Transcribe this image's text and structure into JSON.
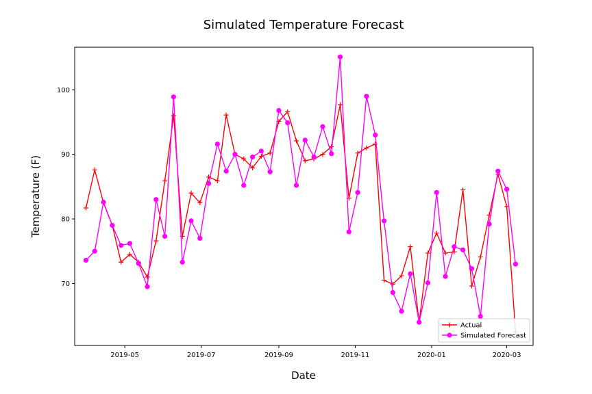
{
  "chart_data": {
    "type": "line",
    "title": "Simulated Temperature Forecast",
    "xlabel": "Date",
    "ylabel": "Temperature (F)",
    "x_ticks": [
      "2019-05",
      "2019-07",
      "2019-09",
      "2019-11",
      "2020-01",
      "2020-03"
    ],
    "y_ticks": [
      70,
      80,
      90,
      100
    ],
    "xlim": [
      "2019-03-22",
      "2020-03-22"
    ],
    "ylim": [
      60.4,
      106.6
    ],
    "grid": false,
    "legend_position": "lower-right",
    "series": [
      {
        "name": "Actual",
        "color": "#ff0000",
        "marker": "plus",
        "points": [
          [
            "2019-03-31",
            81.7
          ],
          [
            "2019-04-07",
            87.6
          ],
          [
            "2019-04-14",
            82.5
          ],
          [
            "2019-04-21",
            79.0
          ],
          [
            "2019-04-28",
            73.3
          ],
          [
            "2019-05-05",
            74.5
          ],
          [
            "2019-05-12",
            73.3
          ],
          [
            "2019-05-19",
            71.0
          ],
          [
            "2019-05-26",
            76.6
          ],
          [
            "2019-06-02",
            85.9
          ],
          [
            "2019-06-09",
            96.0
          ],
          [
            "2019-06-16",
            77.3
          ],
          [
            "2019-06-23",
            84.0
          ],
          [
            "2019-06-30",
            82.5
          ],
          [
            "2019-07-07",
            86.5
          ],
          [
            "2019-07-14",
            85.9
          ],
          [
            "2019-07-21",
            96.1
          ],
          [
            "2019-07-28",
            90.0
          ],
          [
            "2019-08-04",
            89.3
          ],
          [
            "2019-08-11",
            87.9
          ],
          [
            "2019-08-18",
            89.7
          ],
          [
            "2019-08-25",
            90.2
          ],
          [
            "2019-09-01",
            95.1
          ],
          [
            "2019-09-08",
            96.6
          ],
          [
            "2019-09-15",
            92.1
          ],
          [
            "2019-09-22",
            89.0
          ],
          [
            "2019-09-29",
            89.3
          ],
          [
            "2019-10-06",
            90.0
          ],
          [
            "2019-10-13",
            91.2
          ],
          [
            "2019-10-20",
            97.7
          ],
          [
            "2019-10-27",
            83.2
          ],
          [
            "2019-11-03",
            90.2
          ],
          [
            "2019-11-10",
            91.0
          ],
          [
            "2019-11-17",
            91.6
          ],
          [
            "2019-11-24",
            70.5
          ],
          [
            "2019-12-01",
            69.9
          ],
          [
            "2019-12-08",
            71.2
          ],
          [
            "2019-12-15",
            75.7
          ],
          [
            "2019-12-22",
            64.0
          ],
          [
            "2019-12-29",
            74.7
          ],
          [
            "2020-01-05",
            77.8
          ],
          [
            "2020-01-12",
            74.7
          ],
          [
            "2020-01-19",
            74.9
          ],
          [
            "2020-01-26",
            84.5
          ],
          [
            "2020-02-02",
            69.6
          ],
          [
            "2020-02-09",
            74.1
          ],
          [
            "2020-02-16",
            80.6
          ],
          [
            "2020-02-23",
            86.9
          ],
          [
            "2020-03-01",
            81.9
          ],
          [
            "2020-03-08",
            62.5
          ]
        ]
      },
      {
        "name": "Simulated Forecast",
        "color": "#ff00ff",
        "marker": "circle",
        "points": [
          [
            "2019-03-31",
            73.6
          ],
          [
            "2019-04-07",
            75.0
          ],
          [
            "2019-04-14",
            82.6
          ],
          [
            "2019-04-21",
            79.0
          ],
          [
            "2019-04-28",
            75.9
          ],
          [
            "2019-05-05",
            76.2
          ],
          [
            "2019-05-12",
            73.1
          ],
          [
            "2019-05-19",
            69.5
          ],
          [
            "2019-05-26",
            83.0
          ],
          [
            "2019-06-02",
            77.3
          ],
          [
            "2019-06-09",
            98.9
          ],
          [
            "2019-06-16",
            73.3
          ],
          [
            "2019-06-23",
            79.7
          ],
          [
            "2019-06-30",
            77.0
          ],
          [
            "2019-07-07",
            85.5
          ],
          [
            "2019-07-14",
            91.6
          ],
          [
            "2019-07-21",
            87.4
          ],
          [
            "2019-07-28",
            90.0
          ],
          [
            "2019-08-04",
            85.2
          ],
          [
            "2019-08-11",
            89.6
          ],
          [
            "2019-08-18",
            90.5
          ],
          [
            "2019-08-25",
            87.3
          ],
          [
            "2019-09-01",
            96.8
          ],
          [
            "2019-09-08",
            94.9
          ],
          [
            "2019-09-15",
            85.2
          ],
          [
            "2019-09-22",
            92.2
          ],
          [
            "2019-09-29",
            89.6
          ],
          [
            "2019-10-06",
            94.3
          ],
          [
            "2019-10-13",
            90.1
          ],
          [
            "2019-10-20",
            105.1
          ],
          [
            "2019-10-27",
            78.0
          ],
          [
            "2019-11-03",
            84.1
          ],
          [
            "2019-11-10",
            99.0
          ],
          [
            "2019-11-17",
            93.0
          ],
          [
            "2019-11-24",
            79.7
          ],
          [
            "2019-12-01",
            68.6
          ],
          [
            "2019-12-08",
            65.7
          ],
          [
            "2019-12-15",
            71.5
          ],
          [
            "2019-12-22",
            64.0
          ],
          [
            "2019-12-29",
            70.1
          ],
          [
            "2020-01-05",
            84.1
          ],
          [
            "2020-01-12",
            71.1
          ],
          [
            "2020-01-19",
            75.7
          ],
          [
            "2020-01-26",
            75.2
          ],
          [
            "2020-02-02",
            72.3
          ],
          [
            "2020-02-09",
            64.9
          ],
          [
            "2020-02-16",
            79.2
          ],
          [
            "2020-02-23",
            87.4
          ],
          [
            "2020-03-01",
            84.6
          ],
          [
            "2020-03-08",
            73.0
          ]
        ]
      }
    ]
  }
}
